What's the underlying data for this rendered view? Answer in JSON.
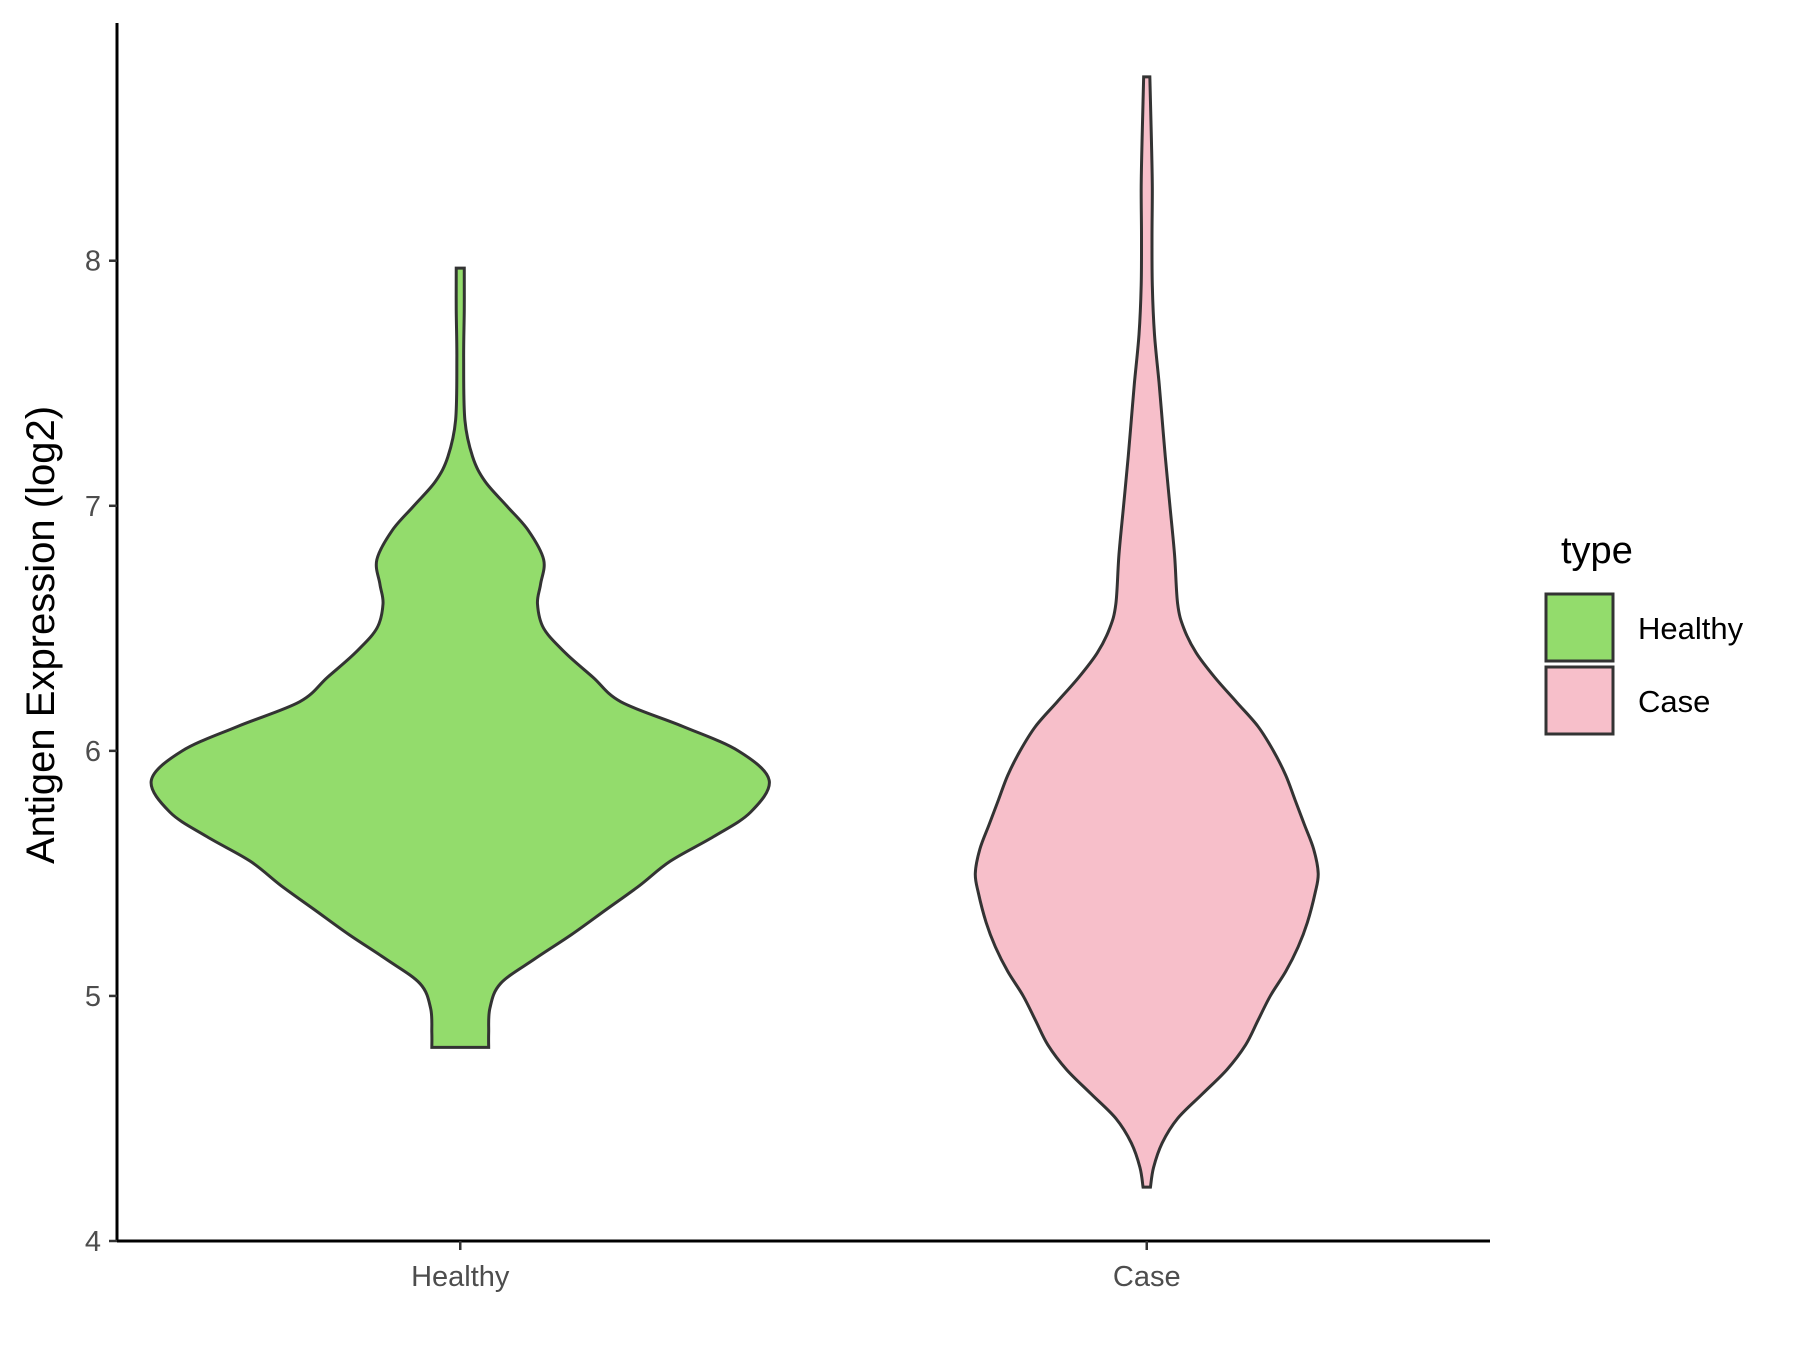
{
  "chart_data": {
    "type": "violin",
    "ylabel": "Antigen Expression (log2)",
    "xlabel": "",
    "ylim": [
      4,
      8.97
    ],
    "y_ticks": [
      4,
      5,
      6,
      7,
      8
    ],
    "categories": [
      "Healthy",
      "Case"
    ],
    "grid": false,
    "legend": {
      "title": "type",
      "position": "right",
      "entries": [
        {
          "label": "Healthy",
          "color": "#93dc6c"
        },
        {
          "label": "Case",
          "color": "#f7bfca"
        }
      ]
    },
    "series": [
      {
        "name": "Healthy",
        "color": "#93dc6c",
        "min": 4.79,
        "max": 7.97,
        "density_profile": [
          [
            4.79,
            0.092
          ],
          [
            4.85,
            0.092
          ],
          [
            4.95,
            0.096
          ],
          [
            5.05,
            0.13
          ],
          [
            5.15,
            0.24
          ],
          [
            5.25,
            0.36
          ],
          [
            5.35,
            0.47
          ],
          [
            5.45,
            0.58
          ],
          [
            5.55,
            0.68
          ],
          [
            5.65,
            0.82
          ],
          [
            5.75,
            0.94
          ],
          [
            5.88,
            1.0
          ],
          [
            6.0,
            0.9
          ],
          [
            6.1,
            0.72
          ],
          [
            6.2,
            0.52
          ],
          [
            6.3,
            0.43
          ],
          [
            6.4,
            0.34
          ],
          [
            6.5,
            0.27
          ],
          [
            6.6,
            0.25
          ],
          [
            6.68,
            0.26
          ],
          [
            6.78,
            0.27
          ],
          [
            6.9,
            0.22
          ],
          [
            7.0,
            0.15
          ],
          [
            7.1,
            0.08
          ],
          [
            7.2,
            0.04
          ],
          [
            7.35,
            0.015
          ],
          [
            7.6,
            0.011
          ],
          [
            7.8,
            0.013
          ],
          [
            7.97,
            0.013
          ]
        ]
      },
      {
        "name": "Case",
        "color": "#f7bfca",
        "min": 4.22,
        "max": 8.75,
        "density_profile": [
          [
            4.22,
            0.012
          ],
          [
            4.3,
            0.022
          ],
          [
            4.4,
            0.05
          ],
          [
            4.5,
            0.1
          ],
          [
            4.6,
            0.18
          ],
          [
            4.7,
            0.26
          ],
          [
            4.8,
            0.32
          ],
          [
            4.9,
            0.36
          ],
          [
            5.0,
            0.4
          ],
          [
            5.1,
            0.45
          ],
          [
            5.2,
            0.49
          ],
          [
            5.3,
            0.52
          ],
          [
            5.42,
            0.545
          ],
          [
            5.5,
            0.555
          ],
          [
            5.6,
            0.54
          ],
          [
            5.7,
            0.51
          ],
          [
            5.8,
            0.48
          ],
          [
            5.9,
            0.45
          ],
          [
            6.0,
            0.41
          ],
          [
            6.1,
            0.36
          ],
          [
            6.2,
            0.29
          ],
          [
            6.3,
            0.22
          ],
          [
            6.4,
            0.16
          ],
          [
            6.5,
            0.12
          ],
          [
            6.6,
            0.1
          ],
          [
            6.8,
            0.09
          ],
          [
            7.0,
            0.075
          ],
          [
            7.2,
            0.06
          ],
          [
            7.35,
            0.05
          ],
          [
            7.5,
            0.04
          ],
          [
            7.7,
            0.025
          ],
          [
            7.9,
            0.018
          ],
          [
            8.1,
            0.017
          ],
          [
            8.3,
            0.018
          ],
          [
            8.5,
            0.015
          ],
          [
            8.65,
            0.012
          ],
          [
            8.75,
            0.01
          ]
        ]
      }
    ]
  }
}
